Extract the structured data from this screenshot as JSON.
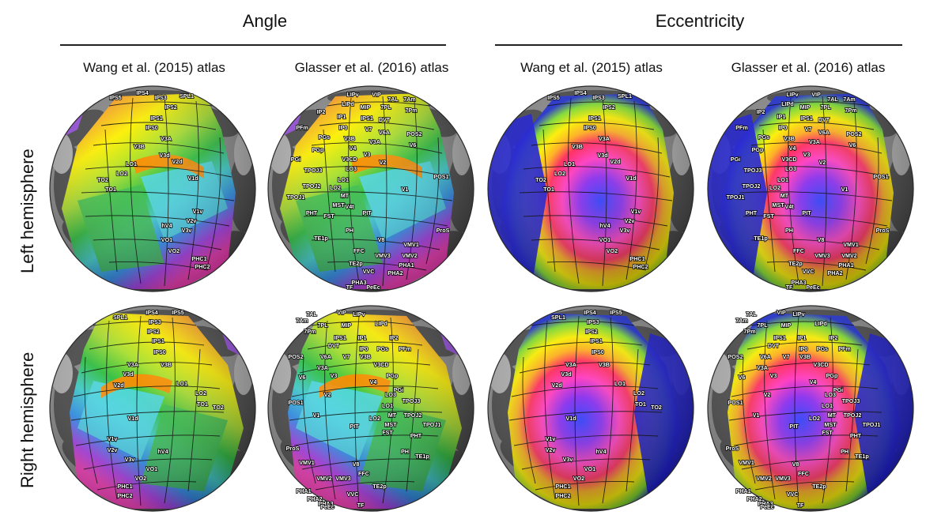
{
  "groups": {
    "angle": "Angle",
    "eccentricity": "Eccentricity"
  },
  "columns": {
    "angle_wang": "Wang et al. (2015) atlas",
    "angle_glasser": "Glasser et al. (2016) atlas",
    "ecc_wang": "Wang et al. (2015) atlas",
    "ecc_glasser": "Glasser et al. (2016) atlas"
  },
  "rows": {
    "left": "Left hemisphere",
    "right": "Right hemisphere"
  },
  "wang_left_labels": [
    "IPS5",
    "IPS4",
    "IPS3",
    "SPL1",
    "IPS2",
    "IPS1",
    "IPS0",
    "V3A",
    "V3B",
    "V3d",
    "V2d",
    "LO1",
    "LO2",
    "TO2",
    "TO1",
    "V1d",
    "V1v",
    "V2v",
    "V3v",
    "hV4",
    "VO1",
    "VO2",
    "PHC1",
    "PHC2"
  ],
  "wang_right_labels": [
    "SPL1",
    "IPS4",
    "IPS5",
    "IPS3",
    "IPS2",
    "IPS1",
    "IPS0",
    "V3A",
    "V3B",
    "V3d",
    "V2d",
    "LO1",
    "LO2",
    "TO1",
    "TO2",
    "V1d",
    "V1v",
    "V2v",
    "V3v",
    "hV4",
    "VO1",
    "VO2",
    "PHC1",
    "PHC2"
  ],
  "glasser_left_labels": [
    "LIPv",
    "VIP",
    "7AL",
    "7Am",
    "LIPd",
    "MIP",
    "7PL",
    "7Pm",
    "IP2",
    "IP1",
    "IPS1",
    "DVT",
    "PFm",
    "IP0",
    "V7",
    "V6A",
    "POS2",
    "PGs",
    "V3B",
    "V3A",
    "V6",
    "PGp",
    "V4",
    "V3",
    "PGi",
    "V3CD",
    "V2",
    "LO3",
    "TPOJ3",
    "LO1",
    "POS1",
    "TPOJ2",
    "LO2",
    "MT",
    "V1",
    "TPOJ1",
    "MST",
    "V4t",
    "PHT",
    "FST",
    "PIT",
    "ProS",
    "PH",
    "TE1p",
    "V8",
    "VMV1",
    "FFC",
    "VMV3",
    "VMV2",
    "TE2p",
    "VVC",
    "PHA1",
    "PHA2",
    "PHA3",
    "TF",
    "PeEc"
  ],
  "glasser_right_labels": [
    "7AL",
    "VIP",
    "LIPv",
    "7Am",
    "7PL",
    "MIP",
    "LIPd",
    "7Pm",
    "IPS1",
    "IP1",
    "IP2",
    "DVT",
    "IP0",
    "PGs",
    "PFm",
    "POS2",
    "V6A",
    "V7",
    "V3B",
    "V3A",
    "V3CD",
    "PGp",
    "V6",
    "V3",
    "V4",
    "PGi",
    "V2",
    "LO3",
    "TPOJ3",
    "POS1",
    "LO1",
    "MT",
    "TPOJ2",
    "V1",
    "LO2",
    "MST",
    "TPOJ1",
    "PIT",
    "FST",
    "PHT",
    "ProS",
    "PH",
    "TE1p",
    "VMV1",
    "V8",
    "FFC",
    "VMV3",
    "VMV2",
    "TE2p",
    "PHA1",
    "VVC",
    "PHA2",
    "PHA3",
    "TF",
    "PeEc"
  ]
}
